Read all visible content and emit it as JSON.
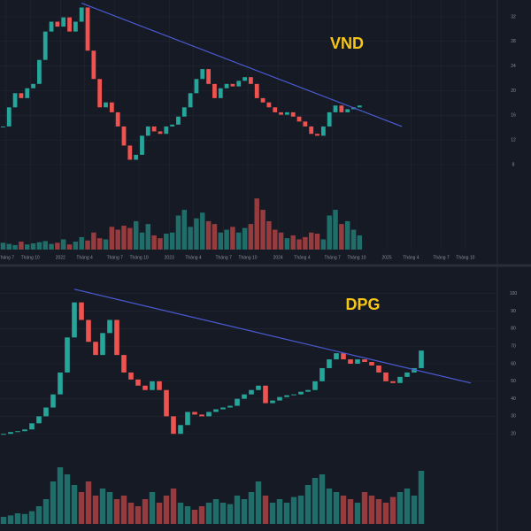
{
  "chart_data": [
    {
      "type": "candlestick",
      "title": "VND",
      "close": [
        14.2,
        17.3,
        19.6,
        18.8,
        20.4,
        21.1,
        25,
        29.6,
        31.2,
        30.4,
        31.9,
        29.6,
        31.2,
        33.5,
        26.5,
        21.9,
        17.3,
        18.1,
        16.5,
        14.2,
        11.1,
        8.8,
        9.6,
        12.7,
        14.2,
        13.4,
        13,
        14.2,
        14.5,
        15.8,
        17.3,
        19.6,
        21.9,
        23.5,
        21.1,
        18.8,
        20.4,
        21.1,
        20.7,
        21.6,
        22.2,
        21.1,
        18.8,
        18.1,
        17.3,
        16.5,
        16.1,
        16.5,
        15.8,
        15,
        14.2,
        13,
        12.7,
        14.2,
        16.5,
        17.6,
        16.5,
        17,
        17.3,
        17.6
      ],
      "volume": [
        12,
        10,
        8,
        14,
        9,
        11,
        13,
        15,
        10,
        12,
        18,
        9,
        14,
        22,
        16,
        30,
        20,
        18,
        40,
        35,
        42,
        38,
        50,
        30,
        45,
        25,
        20,
        28,
        30,
        60,
        70,
        40,
        55,
        65,
        50,
        45,
        30,
        35,
        40,
        30,
        38,
        45,
        90,
        70,
        50,
        35,
        30,
        20,
        25,
        18,
        22,
        30,
        28,
        18,
        60,
        70,
        45,
        50,
        35,
        25
      ],
      "volume_lim": [
        0,
        120
      ],
      "xlim": [
        0,
        82
      ],
      "ylim": [
        6,
        34
      ],
      "yticks": [
        8,
        12,
        16,
        20,
        24,
        28,
        32
      ],
      "xticks": [
        {
          "value": 1,
          "label": "Tháng 7"
        },
        {
          "value": 5,
          "label": "Tháng 10"
        },
        {
          "value": 10,
          "label": "2022"
        },
        {
          "value": 14,
          "label": "Tháng 4"
        },
        {
          "value": 19,
          "label": "Tháng 7"
        },
        {
          "value": 23,
          "label": "Tháng 10"
        },
        {
          "value": 28,
          "label": "2023"
        },
        {
          "value": 32,
          "label": "Tháng 4"
        },
        {
          "value": 37,
          "label": "Tháng 7"
        },
        {
          "value": 41,
          "label": "Tháng 10"
        },
        {
          "value": 46,
          "label": "2024"
        },
        {
          "value": 50,
          "label": "Tháng 4"
        },
        {
          "value": 55,
          "label": "Tháng 7"
        },
        {
          "value": 59,
          "label": "Tháng 10"
        },
        {
          "value": 64,
          "label": "2025"
        },
        {
          "value": 68,
          "label": "Tháng 4"
        },
        {
          "value": 73,
          "label": "Tháng 7"
        },
        {
          "value": 77,
          "label": "Tháng 10"
        }
      ],
      "trendline": {
        "x": [
          13,
          66
        ],
        "y": [
          34.2,
          14.2
        ],
        "color": "#4a5bd4"
      },
      "up_color": "#26a69a",
      "down_color": "#ef5350",
      "grid": true
    },
    {
      "type": "candlestick",
      "title": "DPG",
      "close": [
        20,
        21,
        21.5,
        22.5,
        26,
        30,
        35,
        42.5,
        55,
        75,
        95,
        85,
        72.5,
        65,
        77.5,
        85,
        65,
        55,
        51,
        47.5,
        45,
        50,
        45,
        30,
        20,
        25,
        32.5,
        31,
        30,
        32.5,
        34,
        35,
        36,
        40,
        42.5,
        45,
        47.5,
        37.5,
        39,
        41,
        42,
        42.5,
        44,
        45,
        50,
        57.5,
        62.5,
        66,
        62.5,
        60,
        62.5,
        61,
        59,
        55,
        50,
        49,
        52.5,
        55,
        57.5,
        67.5
      ],
      "volume": [
        10,
        12,
        15,
        14,
        18,
        25,
        35,
        60,
        80,
        70,
        55,
        45,
        60,
        40,
        50,
        45,
        35,
        40,
        30,
        25,
        35,
        45,
        30,
        40,
        50,
        30,
        25,
        20,
        25,
        30,
        35,
        30,
        28,
        40,
        35,
        45,
        60,
        40,
        30,
        35,
        30,
        38,
        40,
        55,
        65,
        70,
        50,
        45,
        40,
        35,
        30,
        45,
        40,
        35,
        30,
        38,
        45,
        50,
        40,
        75
      ],
      "volume_lim": [
        0,
        90
      ],
      "xlim": [
        0,
        70
      ],
      "ylim": [
        10,
        110
      ],
      "yticks": [
        20,
        30,
        40,
        50,
        60,
        70,
        80,
        90,
        100
      ],
      "trendline": {
        "x": [
          10,
          66
        ],
        "y": [
          102.5,
          49
        ],
        "color": "#4a5bd4"
      },
      "up_color": "#26a69a",
      "down_color": "#ef5350",
      "grid": true
    }
  ]
}
